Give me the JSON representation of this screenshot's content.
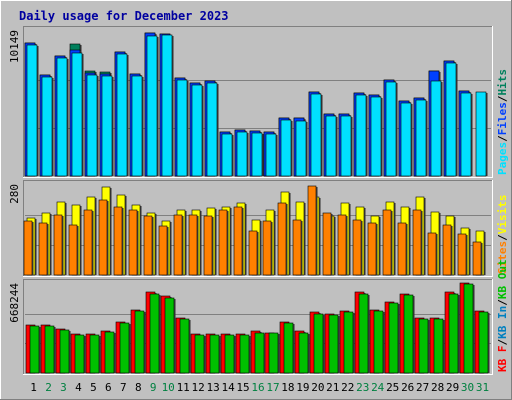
{
  "chart_data": {
    "type": "bar",
    "title": "Daily usage for December 2023",
    "categories": [
      "1",
      "2",
      "3",
      "4",
      "5",
      "6",
      "7",
      "8",
      "9",
      "10",
      "11",
      "12",
      "13",
      "14",
      "15",
      "16",
      "17",
      "18",
      "19",
      "20",
      "21",
      "22",
      "23",
      "24",
      "25",
      "26",
      "27",
      "28",
      "29",
      "30",
      "31"
    ],
    "weekend_days": [
      "2",
      "3",
      "9",
      "10",
      "16",
      "17",
      "23",
      "24",
      "30",
      "31"
    ],
    "colors": {
      "background": "#c0c0c0",
      "title": "#0000a0",
      "weekday_label": "#000000",
      "weekend_label": "#008040",
      "Hits": "#00805c",
      "Files": "#0040ff",
      "Pages": "#00e0ff",
      "Visits": "#ffff00",
      "Sites": "#ff8000",
      "KB F": "#ff0000",
      "KB In": "#0080c0",
      "KB Out": "#00c000",
      "separator": "#000000"
    },
    "panels": [
      {
        "name": "pages-files-hits",
        "peak_label": "10149",
        "ylim": [
          0,
          10149
        ],
        "legend": [
          {
            "text": "Pages",
            "color_key": "Pages"
          },
          {
            "text": "Files",
            "color_key": "Files"
          },
          {
            "text": "Hits",
            "color_key": "Hits"
          }
        ],
        "series": [
          {
            "name": "Hits",
            "values": [
              9250,
              6990,
              8350,
              9150,
              7270,
              7250,
              8650,
              7120,
              9930,
              9900,
              6810,
              6460,
              6610,
              3070,
              3180,
              3100,
              3080,
              4040,
              4000,
              5870,
              4340,
              4340,
              5780,
              5640,
              6660,
              5210,
              5450,
              7320,
              8000,
              5940,
              0
            ]
          },
          {
            "name": "Files",
            "values": [
              9250,
              6990,
              8350,
              8750,
              7130,
              7120,
              8650,
              7120,
              9930,
              9900,
              6810,
              6460,
              6610,
              3070,
              3180,
              3100,
              3080,
              4040,
              4000,
              5870,
              4340,
              4340,
              5780,
              5640,
              6660,
              5210,
              5450,
              7320,
              8000,
              5940,
              0
            ]
          },
          {
            "name": "Pages",
            "values": [
              9100,
              6850,
              8200,
              8580,
              7010,
              6970,
              8500,
              6970,
              9750,
              9770,
              6680,
              6320,
              6480,
              2900,
              3040,
              2960,
              2930,
              3880,
              3840,
              5720,
              4180,
              4180,
              5630,
              5470,
              6520,
              5080,
              5290,
              6630,
              7850,
              5800,
              5860
            ]
          }
        ]
      },
      {
        "name": "visits-sites",
        "peak_label": "280",
        "ylim": [
          0,
          280
        ],
        "legend": [
          {
            "text": "Sites",
            "color_key": "Sites"
          },
          {
            "text": "Visits",
            "color_key": "Visits"
          }
        ],
        "series": [
          {
            "name": "Visits",
            "values": [
              175,
              190,
              225,
              215,
              240,
              270,
              245,
              215,
              190,
              165,
              200,
              200,
              205,
              210,
              220,
              170,
              200,
              255,
              225,
              240,
              180,
              220,
              210,
              180,
              225,
              210,
              240,
              195,
              180,
              145,
              135
            ]
          },
          {
            "name": "Sites",
            "values": [
              165,
              160,
              185,
              155,
              200,
              230,
              210,
              200,
              180,
              150,
              185,
              185,
              180,
              200,
              210,
              135,
              165,
              220,
              170,
              275,
              190,
              185,
              170,
              160,
              200,
              160,
              200,
              130,
              155,
              125,
              100
            ]
          }
        ]
      },
      {
        "name": "kb-f-in-out",
        "peak_label": "668244",
        "ylim": [
          0,
          668244
        ],
        "legend": [
          {
            "text": "KB F",
            "color_key": "KB F"
          },
          {
            "text": "KB In",
            "color_key": "KB In"
          },
          {
            "text": "KB Out",
            "color_key": "KB Out"
          }
        ],
        "series": [
          {
            "name": "KB F",
            "values": [
              360000,
              360000,
              330000,
              290000,
              290000,
              310000,
              380000,
              470000,
              600000,
              570000,
              410000,
              290000,
              290000,
              290000,
              290000,
              310000,
              300000,
              380000,
              310000,
              450000,
              440000,
              460000,
              600000,
              470000,
              530000,
              590000,
              410000,
              410000,
              600000,
              670000,
              460000
            ]
          },
          {
            "name": "KB Out",
            "values": [
              350000,
              350000,
              320000,
              280000,
              285000,
              305000,
              370000,
              460000,
              590000,
              560000,
              400000,
              280000,
              285000,
              285000,
              285000,
              300000,
              300000,
              370000,
              300000,
              440000,
              430000,
              450000,
              590000,
              460000,
              520000,
              580000,
              400000,
              400000,
              590000,
              660000,
              450000
            ]
          }
        ]
      }
    ]
  }
}
